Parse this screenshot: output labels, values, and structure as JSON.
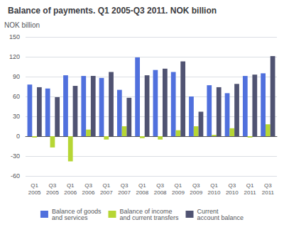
{
  "chart_data": {
    "type": "bar",
    "title": "Balance of payments. Q1 2005-Q3 2011. NOK billion",
    "ylabel": "NOK billion",
    "categories": [
      "Q1\n2005",
      "Q3\n2005",
      "Q1\n2006",
      "Q3\n2006",
      "Q1\n2007",
      "Q3\n2007",
      "Q1\n2008",
      "Q3\n2008",
      "Q1\n2009",
      "Q3\n2009",
      "Q1\n2010",
      "Q3\n2010",
      "Q1\n2011",
      "Q3\n2011"
    ],
    "series": [
      {
        "name": "Balance of goods\nand services",
        "values": [
          78,
          72,
          92,
          91,
          88,
          70,
          119,
          100,
          97,
          60,
          77,
          65,
          91,
          95
        ]
      },
      {
        "name": "Balance of income\nand current transfers",
        "values": [
          -2,
          -17,
          -38,
          10,
          -5,
          15,
          -3,
          -5,
          9,
          15,
          2,
          12,
          -2,
          18
        ]
      },
      {
        "name": "Current\naccount balance",
        "values": [
          74,
          59,
          76,
          91,
          97,
          58,
          92,
          102,
          113,
          37,
          74,
          79,
          93,
          121
        ]
      }
    ],
    "ylim": [
      -60,
      150
    ],
    "yticks": [
      -60,
      -30,
      0,
      30,
      60,
      90,
      120,
      150
    ],
    "grid": true,
    "legend": "bottom"
  }
}
